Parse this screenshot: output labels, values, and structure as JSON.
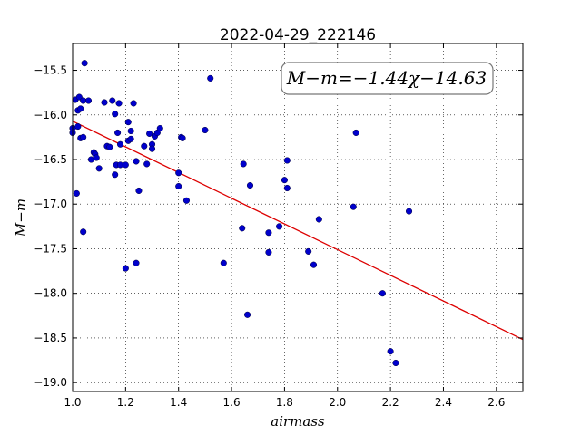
{
  "chart_data": {
    "type": "scatter",
    "title": "2022-04-29_222146",
    "xlabel": "airmass",
    "ylabel": "M−m",
    "xlim": [
      1.0,
      2.7
    ],
    "ylim": [
      -19.1,
      -15.2
    ],
    "x_ticks": [
      1.0,
      1.2,
      1.4,
      1.6,
      1.8,
      2.0,
      2.2,
      2.4,
      2.6
    ],
    "x_tick_labels": [
      "1.0",
      "1.2",
      "1.4",
      "1.6",
      "1.8",
      "2.0",
      "2.2",
      "2.4",
      "2.6"
    ],
    "y_ticks": [
      -15.5,
      -16.0,
      -16.5,
      -17.0,
      -17.5,
      -18.0,
      -18.5,
      -19.0
    ],
    "y_tick_labels": [
      "−15.5",
      "−16.0",
      "−16.5",
      "−17.0",
      "−17.5",
      "−18.0",
      "−18.5",
      "−19.0"
    ],
    "grid": true,
    "annotation": "M−m=−1.44χ−14.63",
    "fit": {
      "slope": -1.44,
      "intercept": -14.63,
      "x_range": [
        1.0,
        2.7
      ]
    },
    "colors": {
      "points": "#0000cc",
      "fit_line": "#dd0000"
    },
    "points": [
      [
        1.0,
        -16.2
      ],
      [
        1.0,
        -16.15
      ],
      [
        1.01,
        -15.83
      ],
      [
        1.015,
        -16.88
      ],
      [
        1.02,
        -15.95
      ],
      [
        1.02,
        -16.13
      ],
      [
        1.025,
        -15.8
      ],
      [
        1.03,
        -15.93
      ],
      [
        1.03,
        -16.26
      ],
      [
        1.04,
        -15.84
      ],
      [
        1.04,
        -16.25
      ],
      [
        1.04,
        -17.31
      ],
      [
        1.045,
        -15.42
      ],
      [
        1.06,
        -15.84
      ],
      [
        1.07,
        -16.5
      ],
      [
        1.08,
        -16.42
      ],
      [
        1.085,
        -16.44
      ],
      [
        1.09,
        -16.48
      ],
      [
        1.1,
        -16.6
      ],
      [
        1.12,
        -15.86
      ],
      [
        1.13,
        -16.35
      ],
      [
        1.14,
        -16.36
      ],
      [
        1.15,
        -15.84
      ],
      [
        1.16,
        -15.99
      ],
      [
        1.16,
        -16.67
      ],
      [
        1.165,
        -16.56
      ],
      [
        1.17,
        -16.2
      ],
      [
        1.175,
        -15.87
      ],
      [
        1.18,
        -16.56
      ],
      [
        1.18,
        -16.33
      ],
      [
        1.2,
        -16.56
      ],
      [
        1.2,
        -17.72
      ],
      [
        1.21,
        -16.08
      ],
      [
        1.21,
        -16.29
      ],
      [
        1.22,
        -16.27
      ],
      [
        1.22,
        -16.18
      ],
      [
        1.23,
        -15.87
      ],
      [
        1.24,
        -16.52
      ],
      [
        1.24,
        -17.66
      ],
      [
        1.25,
        -16.85
      ],
      [
        1.27,
        -16.35
      ],
      [
        1.28,
        -16.55
      ],
      [
        1.29,
        -16.21
      ],
      [
        1.3,
        -16.33
      ],
      [
        1.3,
        -16.38
      ],
      [
        1.31,
        -16.24
      ],
      [
        1.32,
        -16.2
      ],
      [
        1.33,
        -16.15
      ],
      [
        1.4,
        -16.65
      ],
      [
        1.4,
        -16.8
      ],
      [
        1.41,
        -16.25
      ],
      [
        1.415,
        -16.26
      ],
      [
        1.43,
        -16.96
      ],
      [
        1.5,
        -16.17
      ],
      [
        1.52,
        -15.59
      ],
      [
        1.57,
        -17.66
      ],
      [
        1.64,
        -17.27
      ],
      [
        1.645,
        -16.55
      ],
      [
        1.66,
        -18.24
      ],
      [
        1.67,
        -16.79
      ],
      [
        1.74,
        -17.32
      ],
      [
        1.74,
        -17.54
      ],
      [
        1.78,
        -17.25
      ],
      [
        1.8,
        -16.73
      ],
      [
        1.81,
        -16.51
      ],
      [
        1.81,
        -16.82
      ],
      [
        1.89,
        -17.53
      ],
      [
        1.91,
        -17.68
      ],
      [
        1.93,
        -17.17
      ],
      [
        2.06,
        -17.03
      ],
      [
        2.07,
        -16.2
      ],
      [
        2.17,
        -18.0
      ],
      [
        2.2,
        -18.65
      ],
      [
        2.22,
        -18.78
      ],
      [
        2.27,
        -17.08
      ]
    ]
  }
}
